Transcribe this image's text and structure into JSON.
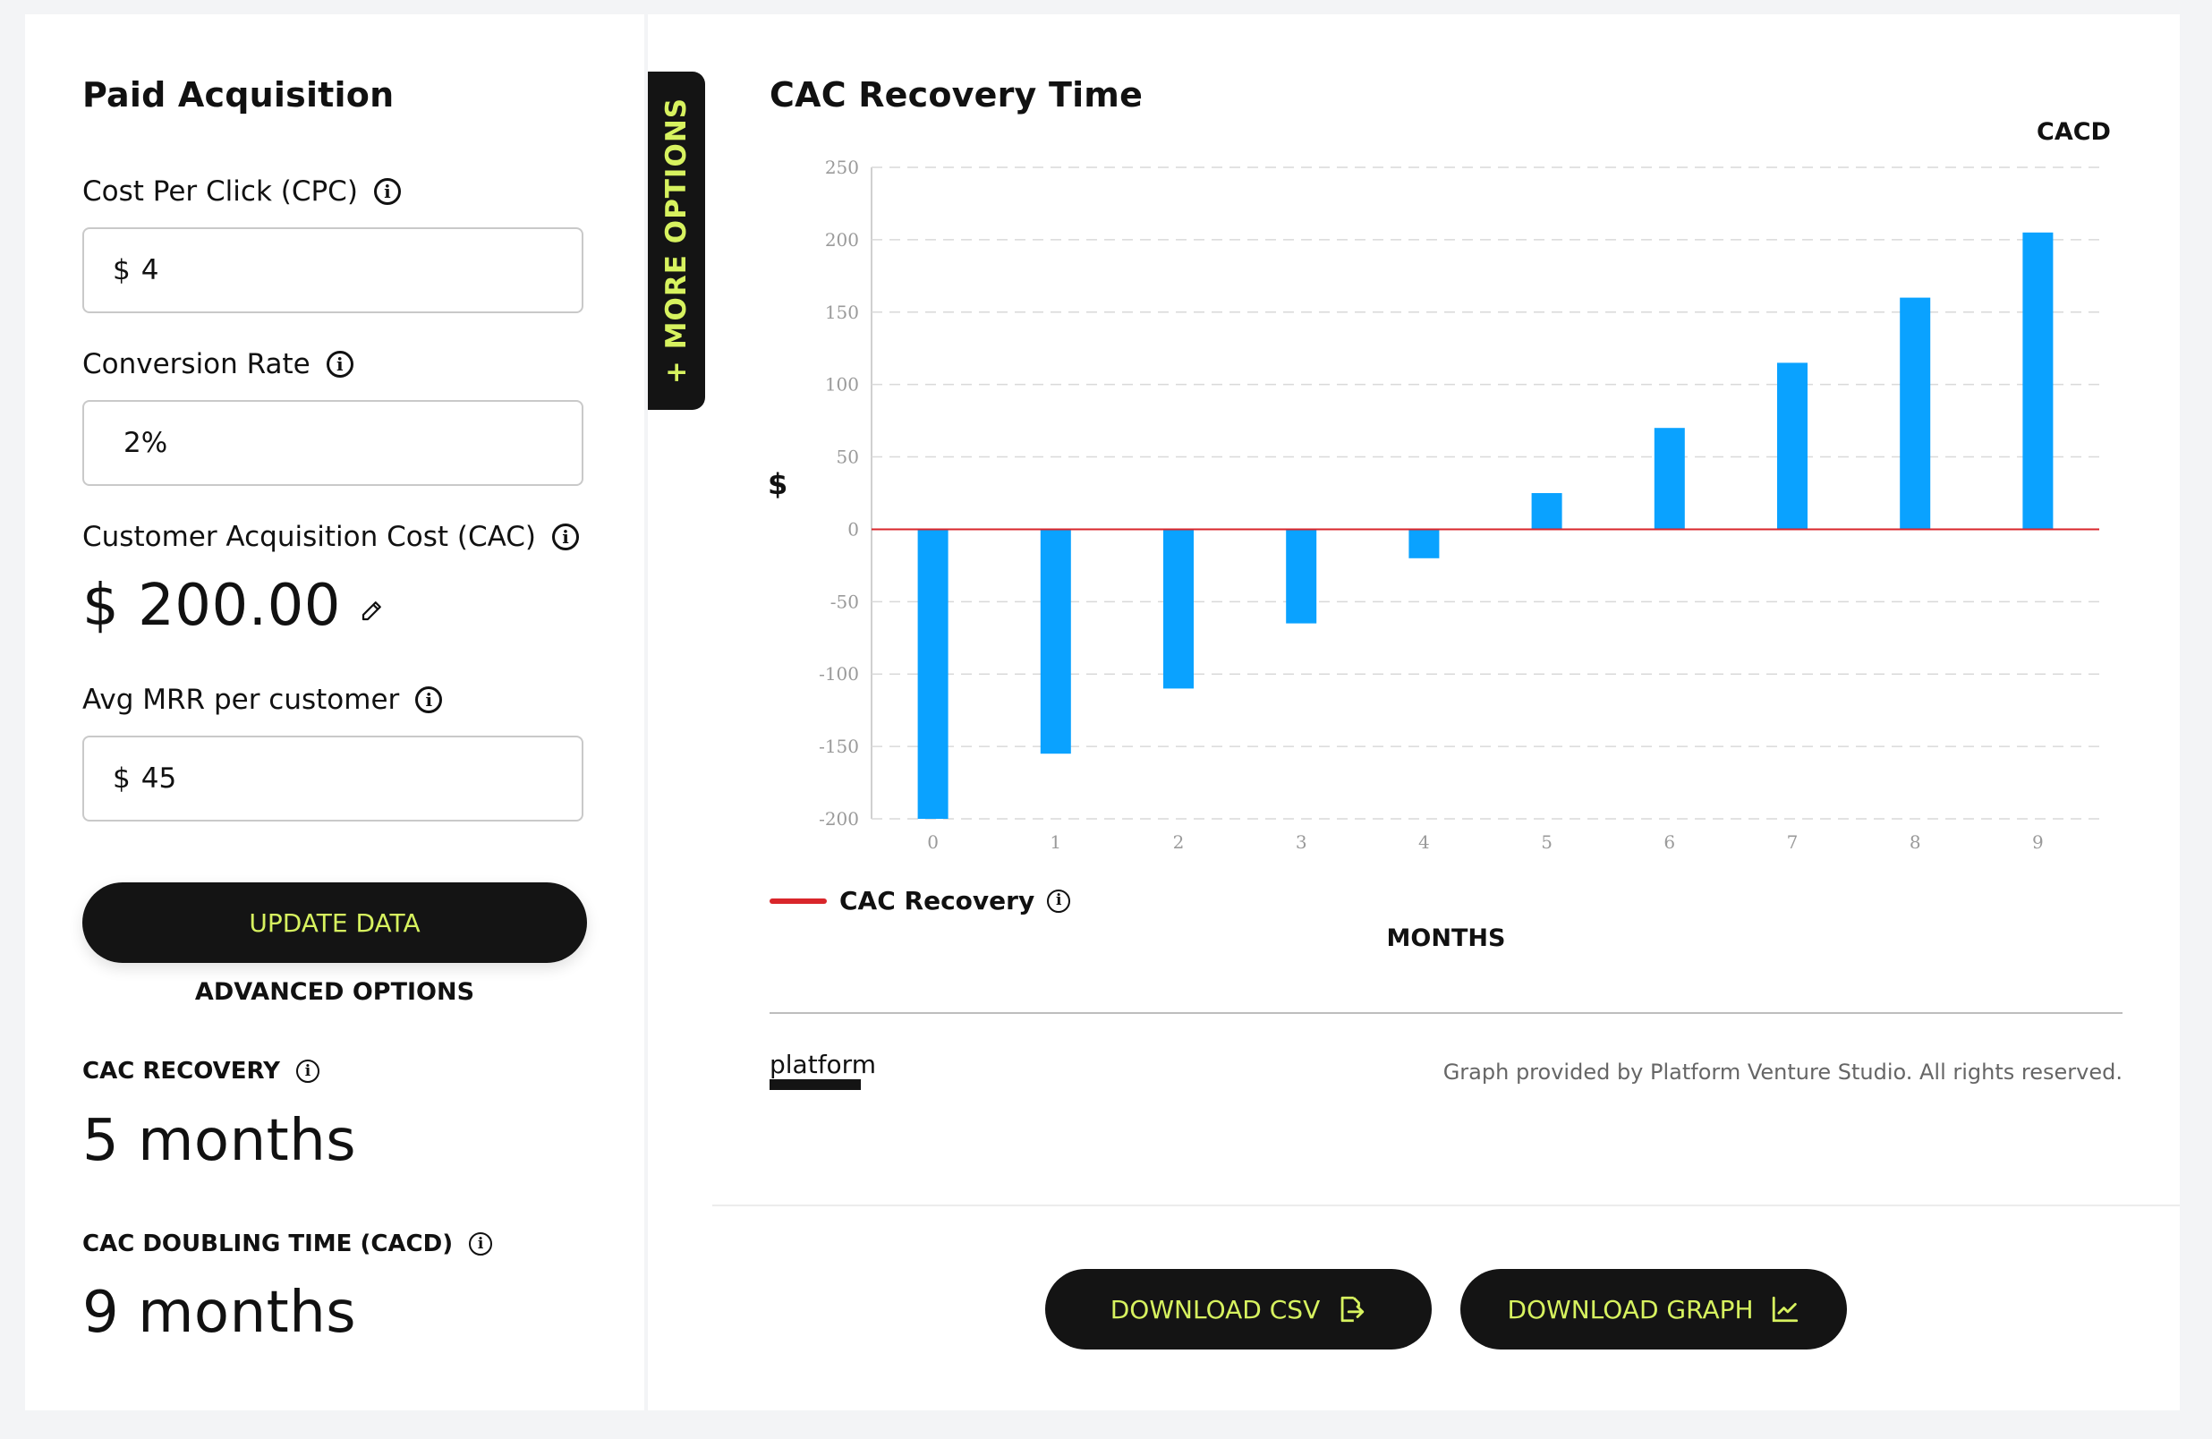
{
  "sidebar": {
    "title": "Paid Acquisition",
    "cpc_label": "Cost Per Click (CPC)",
    "cpc_prefix": "$",
    "cpc_value": "4",
    "conversion_label": "Conversion Rate",
    "conversion_value": "2%",
    "cac_label": "Customer Acquisition Cost (CAC)",
    "cac_value": "$ 200.00",
    "mrr_label": "Avg MRR per customer",
    "mrr_prefix": "$",
    "mrr_value": "45",
    "update_button": "UPDATE DATA",
    "advanced_options": "ADVANCED OPTIONS",
    "cac_recovery_label": "CAC RECOVERY",
    "cac_recovery_value": "5 months",
    "cacd_label": "CAC DOUBLING TIME (CACD)",
    "cacd_value": "9 months"
  },
  "more_options": "+ MORE OPTIONS",
  "chart_title": "CAC Recovery Time",
  "chart_corner_label": "CACD",
  "legend_label": "CAC Recovery",
  "footer": {
    "logo_text": "platform",
    "credit": "Graph provided by Platform Venture Studio. All rights reserved."
  },
  "buttons": {
    "download_csv": "DOWNLOAD CSV",
    "download_graph": "DOWNLOAD GRAPH"
  },
  "colors": {
    "bar": "#0aa2ff",
    "zero_line": "#d9262b",
    "accent": "#d7f25f",
    "dark": "#141414"
  },
  "chart_data": {
    "type": "bar",
    "categories": [
      "0",
      "1",
      "2",
      "3",
      "4",
      "5",
      "6",
      "7",
      "8",
      "9"
    ],
    "values": [
      -200,
      -155,
      -110,
      -65,
      -20,
      25,
      70,
      115,
      160,
      205
    ],
    "ylim": [
      -200,
      250
    ],
    "yticks": [
      250,
      200,
      150,
      100,
      50,
      0,
      -50,
      -100,
      -150,
      -200
    ],
    "ylabel": "$",
    "xlabel": "MONTHS",
    "grid": true,
    "legend_position": "bottom-left"
  }
}
